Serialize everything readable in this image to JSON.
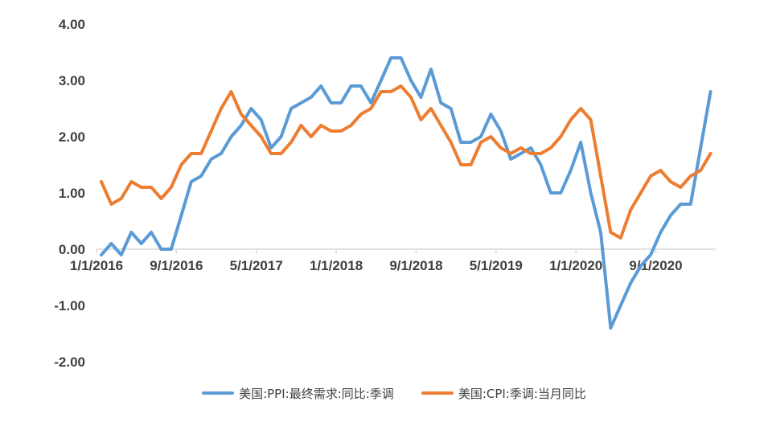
{
  "chart_data": {
    "type": "line",
    "title": "",
    "xlabel": "",
    "ylabel": "",
    "ylim": [
      -2.0,
      4.0
    ],
    "y_ticks": [
      "4.00",
      "3.00",
      "2.00",
      "1.00",
      "0.00",
      "-1.00",
      "-2.00"
    ],
    "y_tick_values": [
      4,
      3,
      2,
      1,
      0,
      -1,
      -2
    ],
    "x_tick_labels": [
      "1/1/2016",
      "9/1/2016",
      "5/1/2017",
      "1/1/2018",
      "9/1/2018",
      "5/1/2019",
      "1/1/2020",
      "9/1/2020"
    ],
    "x_tick_index": [
      0,
      8,
      16,
      24,
      32,
      40,
      48,
      56
    ],
    "x_start": "2016-01",
    "x_end": "2021-02",
    "x_frequency": "monthly",
    "grid": false,
    "legend_position": "bottom",
    "series": [
      {
        "name": "美国:PPI:最终需求:同比:季调",
        "color": "#5B9BD5",
        "values": [
          -0.1,
          0.1,
          -0.1,
          0.3,
          0.1,
          0.3,
          0.0,
          0.0,
          0.6,
          1.2,
          1.3,
          1.6,
          1.7,
          2.0,
          2.2,
          2.5,
          2.3,
          1.8,
          2.0,
          2.5,
          2.6,
          2.7,
          2.9,
          2.6,
          2.6,
          2.9,
          2.9,
          2.6,
          3.0,
          3.4,
          3.4,
          3.0,
          2.7,
          3.2,
          2.6,
          2.5,
          1.9,
          1.9,
          2.0,
          2.4,
          2.1,
          1.6,
          1.7,
          1.8,
          1.5,
          1.0,
          1.0,
          1.4,
          1.9,
          1.0,
          0.3,
          -1.4,
          -1.0,
          -0.6,
          -0.3,
          -0.1,
          0.3,
          0.6,
          0.8,
          0.8,
          1.8,
          2.8
        ]
      },
      {
        "name": "美国:CPI:季调:当月同比",
        "color": "#ED7D31",
        "values": [
          1.2,
          0.8,
          0.9,
          1.2,
          1.1,
          1.1,
          0.9,
          1.1,
          1.5,
          1.7,
          1.7,
          2.1,
          2.5,
          2.8,
          2.4,
          2.2,
          2.0,
          1.7,
          1.7,
          1.9,
          2.2,
          2.0,
          2.2,
          2.1,
          2.1,
          2.2,
          2.4,
          2.5,
          2.8,
          2.8,
          2.9,
          2.7,
          2.3,
          2.5,
          2.2,
          1.9,
          1.5,
          1.5,
          1.9,
          2.0,
          1.8,
          1.7,
          1.8,
          1.7,
          1.7,
          1.8,
          2.0,
          2.3,
          2.5,
          2.3,
          1.3,
          0.3,
          0.2,
          0.7,
          1.0,
          1.3,
          1.4,
          1.2,
          1.1,
          1.3,
          1.4,
          1.7
        ]
      }
    ]
  },
  "legend": {
    "items": [
      {
        "label": "美国:PPI:最终需求:同比:季调",
        "color": "#5B9BD5"
      },
      {
        "label": "美国:CPI:季调:当月同比",
        "color": "#ED7D31"
      }
    ]
  },
  "style": {
    "axis_color": "#D9D9D9",
    "label_color": "#404040"
  }
}
